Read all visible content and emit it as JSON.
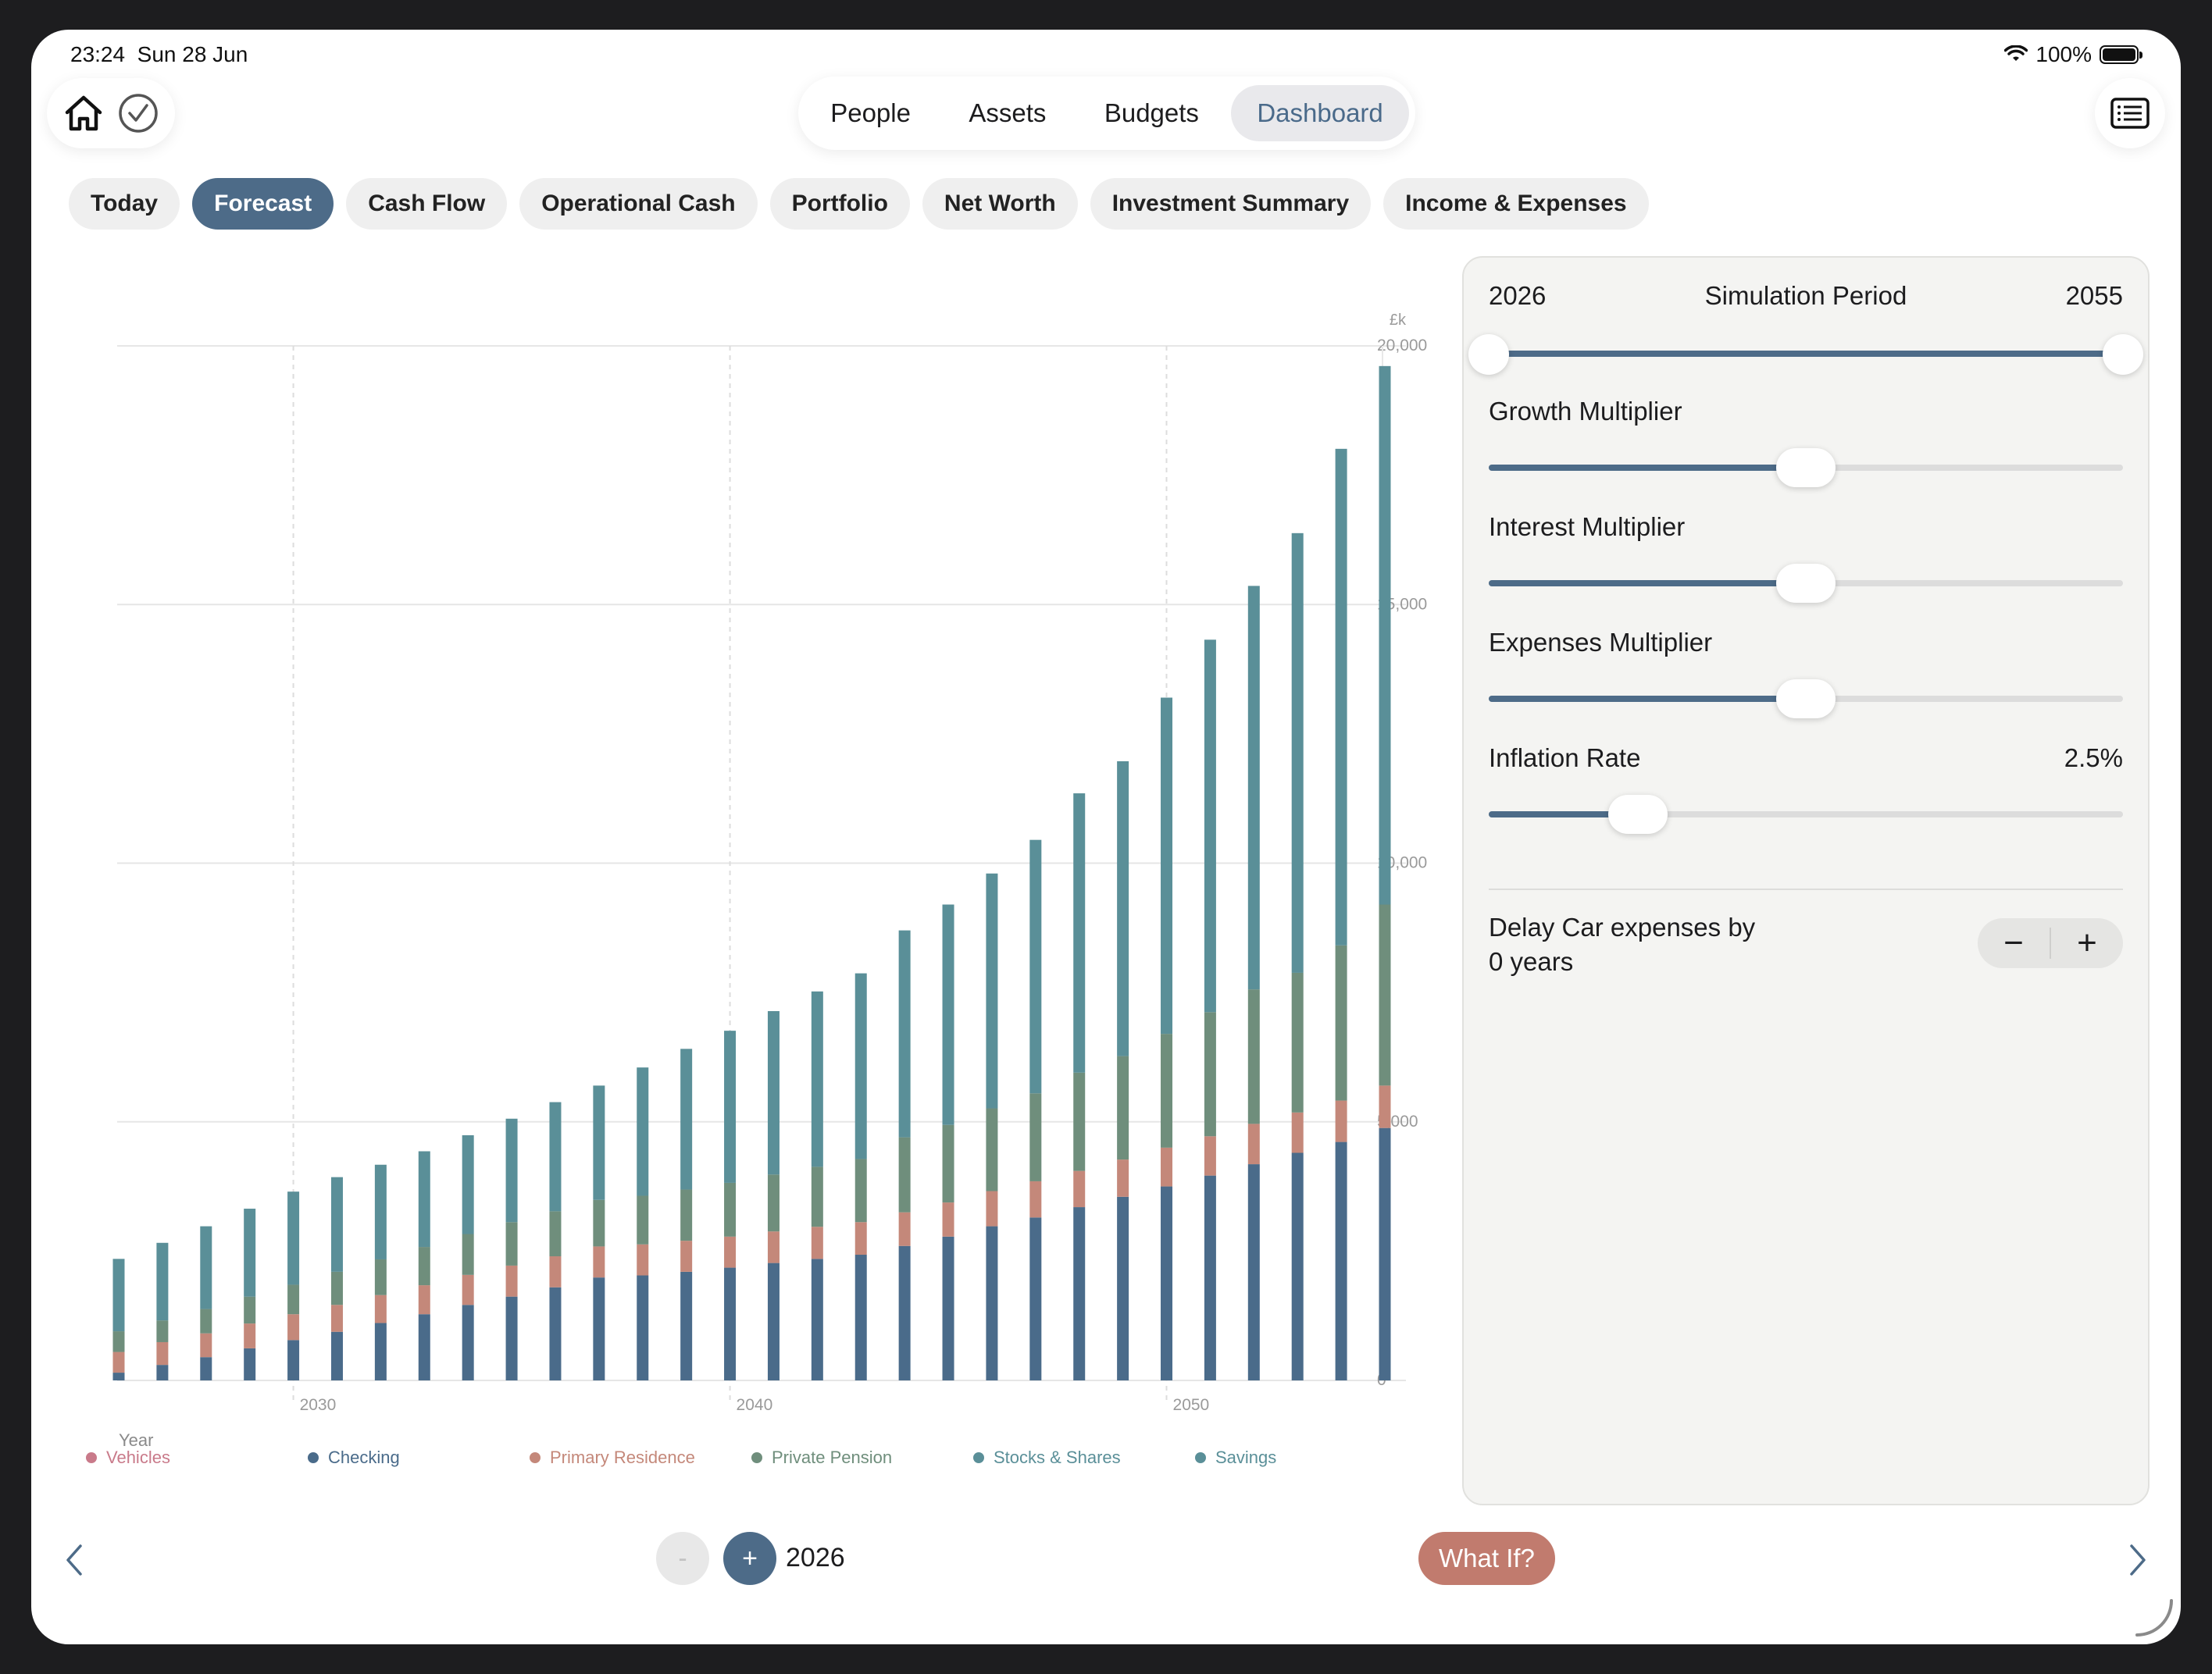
{
  "status": {
    "time": "23:24",
    "date": "Sun 28 Jun",
    "battery": "100%"
  },
  "nav": {
    "tabs": [
      {
        "label": "People",
        "active": false
      },
      {
        "label": "Assets",
        "active": false
      },
      {
        "label": "Budgets",
        "active": false
      },
      {
        "label": "Dashboard",
        "active": true
      }
    ]
  },
  "pills": [
    {
      "label": "Today",
      "active": false
    },
    {
      "label": "Forecast",
      "active": true
    },
    {
      "label": "Cash Flow",
      "active": false
    },
    {
      "label": "Operational Cash",
      "active": false
    },
    {
      "label": "Portfolio",
      "active": false
    },
    {
      "label": "Net Worth",
      "active": false
    },
    {
      "label": "Investment Summary",
      "active": false
    },
    {
      "label": "Income & Expenses",
      "active": false
    }
  ],
  "panel": {
    "sim_start": "2026",
    "sim_title": "Simulation Period",
    "sim_end": "2055",
    "sim_range": [
      0.0,
      1.0
    ],
    "growth_label": "Growth Multiplier",
    "growth_level": 0.5,
    "interest_label": "Interest Multiplier",
    "interest_level": 0.5,
    "expenses_label": "Expenses Multiplier",
    "expenses_level": 0.5,
    "inflation_label": "Inflation Rate",
    "inflation_value": "2.5%",
    "inflation_level": 0.235,
    "delay_line1": "Delay Car expenses by",
    "delay_line2": "0 years",
    "minus": "−",
    "plus": "+"
  },
  "bottom": {
    "minus": "-",
    "plus": "+",
    "year": "2026",
    "whatif": "What If?"
  },
  "colors": {
    "accent": "#4d6b88",
    "checking": "#4a6b8a",
    "residence": "#c4887a",
    "pension": "#6f8e7c",
    "stocks": "#5a8f98",
    "savings": "#5a8f98",
    "vehicles": "#c97a8a"
  },
  "chart_data": {
    "type": "bar",
    "stacked": true,
    "unit": "£k",
    "xlabel": "Year",
    "ylim": [
      0,
      20000
    ],
    "yticks": [
      "0",
      "5,000",
      "10,000",
      "15,000",
      "20,000"
    ],
    "xticks": [
      "2030",
      "2040",
      "2050"
    ],
    "grid": true,
    "legend_position": "bottom",
    "categories": [
      2026,
      2027,
      2028,
      2029,
      2030,
      2031,
      2032,
      2033,
      2034,
      2035,
      2036,
      2037,
      2038,
      2039,
      2040,
      2041,
      2042,
      2043,
      2044,
      2045,
      2046,
      2047,
      2048,
      2049,
      2050,
      2051,
      2052,
      2053,
      2054,
      2055
    ],
    "series": [
      {
        "name": "Checking",
        "values": [
          150,
          300,
          450,
          620,
          780,
          940,
          1110,
          1280,
          1460,
          1620,
          1800,
          1990,
          2030,
          2100,
          2180,
          2270,
          2350,
          2430,
          2600,
          2780,
          2980,
          3150,
          3350,
          3550,
          3750,
          3960,
          4180,
          4400,
          4610,
          4880
        ]
      },
      {
        "name": "Primary Residence",
        "values": [
          400,
          440,
          460,
          480,
          500,
          520,
          540,
          560,
          580,
          600,
          600,
          600,
          600,
          600,
          600,
          610,
          620,
          630,
          650,
          660,
          680,
          700,
          700,
          720,
          750,
          760,
          780,
          780,
          800,
          820
        ]
      },
      {
        "name": "Private Pension",
        "values": [
          400,
          420,
          470,
          520,
          570,
          640,
          690,
          740,
          790,
          840,
          870,
          900,
          940,
          990,
          1040,
          1100,
          1160,
          1220,
          1450,
          1500,
          1600,
          1700,
          1900,
          2000,
          2200,
          2400,
          2600,
          2700,
          3000,
          3500
        ]
      },
      {
        "name": "Stocks & Shares",
        "values": [
          1400,
          1500,
          1600,
          1700,
          1800,
          1830,
          1830,
          1850,
          1910,
          2000,
          2110,
          2210,
          2480,
          2720,
          2940,
          3160,
          3390,
          3590,
          4000,
          4260,
          4540,
          4900,
          5400,
          5700,
          6500,
          7200,
          7800,
          8500,
          9600,
          10410
        ]
      },
      {
        "name": "Savings",
        "values": [
          0,
          0,
          0,
          0,
          0,
          0,
          0,
          0,
          0,
          0,
          0,
          0,
          0,
          0,
          0,
          0,
          0,
          0,
          0,
          0,
          0,
          0,
          0,
          0,
          0,
          0,
          0,
          0,
          0,
          0
        ]
      },
      {
        "name": "Vehicles",
        "values": [
          0,
          0,
          0,
          0,
          0,
          0,
          0,
          0,
          0,
          0,
          0,
          0,
          0,
          0,
          0,
          0,
          0,
          0,
          0,
          0,
          0,
          0,
          0,
          0,
          0,
          0,
          0,
          0,
          0,
          0
        ]
      }
    ],
    "legend": [
      "Vehicles",
      "Checking",
      "Primary Residence",
      "Private Pension",
      "Stocks & Shares",
      "Savings"
    ]
  }
}
